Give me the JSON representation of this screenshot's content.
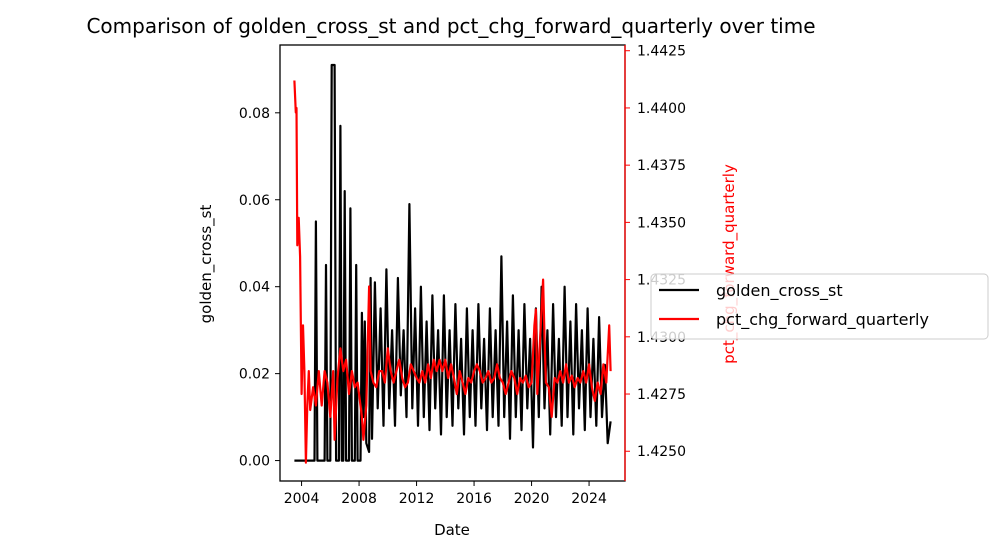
{
  "chart_data": {
    "type": "line",
    "title": "Comparison of golden_cross_st and pct_chg_forward_quarterly over time",
    "xlabel": "Date",
    "ylabel_left": "golden_cross_st",
    "ylabel_right": "pct_chg_forward_quarterly",
    "xlim": [
      2002.5,
      2026.5
    ],
    "ylim_left": [
      -0.0047,
      0.0956
    ],
    "ylim_right": [
      1.4237,
      1.44275
    ],
    "x_ticks": [
      2004,
      2008,
      2012,
      2016,
      2020,
      2024
    ],
    "y_left_ticks": [
      0.0,
      0.02,
      0.04,
      0.06,
      0.08
    ],
    "y_left_tick_labels": [
      "0.00",
      "0.02",
      "0.04",
      "0.06",
      "0.08"
    ],
    "y_right_ticks": [
      1.425,
      1.4275,
      1.43,
      1.4325,
      1.435,
      1.4375,
      1.44,
      1.4425
    ],
    "y_right_tick_labels": [
      "1.4250",
      "1.4275",
      "1.4300",
      "1.4325",
      "1.4350",
      "1.4375",
      "1.4400",
      "1.4425"
    ],
    "grid": false,
    "legend_position": "right, outside plot",
    "colors": {
      "left_series": "#000000",
      "right_series": "#ff0000",
      "right_axis": "#ff0000"
    },
    "series": [
      {
        "name": "golden_cross_st",
        "axis": "left",
        "color": "#000000",
        "points": [
          [
            2003.5,
            0.0
          ],
          [
            2004.0,
            0.0
          ],
          [
            2004.5,
            0.0
          ],
          [
            2004.9,
            0.0
          ],
          [
            2005.0,
            0.055
          ],
          [
            2005.1,
            0.0
          ],
          [
            2005.6,
            0.0
          ],
          [
            2005.7,
            0.045
          ],
          [
            2005.8,
            0.0
          ],
          [
            2006.0,
            0.0
          ],
          [
            2006.1,
            0.091
          ],
          [
            2006.3,
            0.091
          ],
          [
            2006.4,
            0.0
          ],
          [
            2006.6,
            0.0
          ],
          [
            2006.7,
            0.077
          ],
          [
            2006.8,
            0.0
          ],
          [
            2006.9,
            0.0
          ],
          [
            2007.0,
            0.062
          ],
          [
            2007.1,
            0.0
          ],
          [
            2007.3,
            0.0
          ],
          [
            2007.4,
            0.058
          ],
          [
            2007.5,
            0.0
          ],
          [
            2007.7,
            0.0
          ],
          [
            2007.8,
            0.045
          ],
          [
            2007.9,
            0.0
          ],
          [
            2008.1,
            0.0
          ],
          [
            2008.2,
            0.034
          ],
          [
            2008.3,
            0.01
          ],
          [
            2008.4,
            0.032
          ],
          [
            2008.5,
            0.004
          ],
          [
            2008.7,
            0.002
          ],
          [
            2008.8,
            0.042
          ],
          [
            2008.9,
            0.005
          ],
          [
            2009.1,
            0.041
          ],
          [
            2009.3,
            0.012
          ],
          [
            2009.5,
            0.035
          ],
          [
            2009.7,
            0.008
          ],
          [
            2009.9,
            0.044
          ],
          [
            2010.1,
            0.012
          ],
          [
            2010.3,
            0.03
          ],
          [
            2010.5,
            0.008
          ],
          [
            2010.7,
            0.042
          ],
          [
            2010.9,
            0.015
          ],
          [
            2011.1,
            0.03
          ],
          [
            2011.3,
            0.01
          ],
          [
            2011.5,
            0.059
          ],
          [
            2011.7,
            0.012
          ],
          [
            2011.9,
            0.035
          ],
          [
            2012.1,
            0.008
          ],
          [
            2012.3,
            0.04
          ],
          [
            2012.5,
            0.01
          ],
          [
            2012.7,
            0.032
          ],
          [
            2012.9,
            0.007
          ],
          [
            2013.1,
            0.038
          ],
          [
            2013.3,
            0.012
          ],
          [
            2013.5,
            0.03
          ],
          [
            2013.7,
            0.006
          ],
          [
            2013.9,
            0.038
          ],
          [
            2014.1,
            0.01
          ],
          [
            2014.3,
            0.03
          ],
          [
            2014.5,
            0.008
          ],
          [
            2014.7,
            0.036
          ],
          [
            2014.9,
            0.012
          ],
          [
            2015.1,
            0.028
          ],
          [
            2015.3,
            0.006
          ],
          [
            2015.5,
            0.035
          ],
          [
            2015.7,
            0.01
          ],
          [
            2015.9,
            0.03
          ],
          [
            2016.1,
            0.008
          ],
          [
            2016.3,
            0.036
          ],
          [
            2016.5,
            0.012
          ],
          [
            2016.7,
            0.028
          ],
          [
            2016.9,
            0.007
          ],
          [
            2017.1,
            0.035
          ],
          [
            2017.3,
            0.01
          ],
          [
            2017.5,
            0.03
          ],
          [
            2017.7,
            0.008
          ],
          [
            2017.9,
            0.047
          ],
          [
            2018.1,
            0.01
          ],
          [
            2018.3,
            0.032
          ],
          [
            2018.5,
            0.005
          ],
          [
            2018.7,
            0.038
          ],
          [
            2018.9,
            0.01
          ],
          [
            2019.1,
            0.03
          ],
          [
            2019.3,
            0.007
          ],
          [
            2019.5,
            0.036
          ],
          [
            2019.7,
            0.012
          ],
          [
            2019.9,
            0.028
          ],
          [
            2020.1,
            0.003
          ],
          [
            2020.3,
            0.035
          ],
          [
            2020.5,
            0.01
          ],
          [
            2020.7,
            0.04
          ],
          [
            2020.9,
            0.012
          ],
          [
            2021.1,
            0.03
          ],
          [
            2021.3,
            0.006
          ],
          [
            2021.5,
            0.036
          ],
          [
            2021.7,
            0.01
          ],
          [
            2021.9,
            0.028
          ],
          [
            2022.1,
            0.008
          ],
          [
            2022.3,
            0.04
          ],
          [
            2022.5,
            0.01
          ],
          [
            2022.7,
            0.032
          ],
          [
            2022.9,
            0.006
          ],
          [
            2023.1,
            0.036
          ],
          [
            2023.3,
            0.012
          ],
          [
            2023.5,
            0.03
          ],
          [
            2023.7,
            0.007
          ],
          [
            2023.9,
            0.035
          ],
          [
            2024.1,
            0.01
          ],
          [
            2024.3,
            0.028
          ],
          [
            2024.5,
            0.008
          ],
          [
            2024.7,
            0.033
          ],
          [
            2024.9,
            0.01
          ],
          [
            2025.1,
            0.022
          ],
          [
            2025.3,
            0.004
          ],
          [
            2025.5,
            0.009
          ]
        ]
      },
      {
        "name": "pct_chg_forward_quarterly",
        "axis": "right",
        "color": "#ff0000",
        "points": [
          [
            2003.5,
            1.4412
          ],
          [
            2003.6,
            1.4398
          ],
          [
            2003.65,
            1.44
          ],
          [
            2003.7,
            1.434
          ],
          [
            2003.8,
            1.4352
          ],
          [
            2003.9,
            1.4335
          ],
          [
            2004.0,
            1.4275
          ],
          [
            2004.1,
            1.4305
          ],
          [
            2004.2,
            1.4285
          ],
          [
            2004.3,
            1.4245
          ],
          [
            2004.4,
            1.427
          ],
          [
            2004.5,
            1.4285
          ],
          [
            2004.6,
            1.4268
          ],
          [
            2004.8,
            1.4278
          ],
          [
            2005.0,
            1.427
          ],
          [
            2005.2,
            1.4285
          ],
          [
            2005.4,
            1.427
          ],
          [
            2005.6,
            1.4285
          ],
          [
            2005.8,
            1.428
          ],
          [
            2006.0,
            1.4265
          ],
          [
            2006.2,
            1.4285
          ],
          [
            2006.3,
            1.4255
          ],
          [
            2006.5,
            1.4282
          ],
          [
            2006.7,
            1.4295
          ],
          [
            2006.9,
            1.4285
          ],
          [
            2007.1,
            1.429
          ],
          [
            2007.3,
            1.4275
          ],
          [
            2007.5,
            1.4285
          ],
          [
            2007.7,
            1.4278
          ],
          [
            2007.9,
            1.428
          ],
          [
            2008.1,
            1.427
          ],
          [
            2008.2,
            1.4265
          ],
          [
            2008.3,
            1.4255
          ],
          [
            2008.5,
            1.427
          ],
          [
            2008.7,
            1.4322
          ],
          [
            2008.8,
            1.4285
          ],
          [
            2009.0,
            1.428
          ],
          [
            2009.2,
            1.4278
          ],
          [
            2009.4,
            1.4285
          ],
          [
            2009.6,
            1.4285
          ],
          [
            2009.8,
            1.428
          ],
          [
            2010.0,
            1.4295
          ],
          [
            2010.2,
            1.4285
          ],
          [
            2010.4,
            1.428
          ],
          [
            2010.6,
            1.4285
          ],
          [
            2010.8,
            1.429
          ],
          [
            2011.0,
            1.4282
          ],
          [
            2011.2,
            1.4278
          ],
          [
            2011.4,
            1.428
          ],
          [
            2011.6,
            1.4288
          ],
          [
            2011.8,
            1.4285
          ],
          [
            2012.0,
            1.4282
          ],
          [
            2012.2,
            1.428
          ],
          [
            2012.4,
            1.4285
          ],
          [
            2012.6,
            1.428
          ],
          [
            2012.8,
            1.4288
          ],
          [
            2013.0,
            1.4282
          ],
          [
            2013.2,
            1.429
          ],
          [
            2013.4,
            1.4285
          ],
          [
            2013.6,
            1.429
          ],
          [
            2013.8,
            1.4285
          ],
          [
            2014.0,
            1.429
          ],
          [
            2014.2,
            1.4282
          ],
          [
            2014.4,
            1.4288
          ],
          [
            2014.6,
            1.4282
          ],
          [
            2014.8,
            1.4275
          ],
          [
            2015.0,
            1.4285
          ],
          [
            2015.2,
            1.428
          ],
          [
            2015.4,
            1.4275
          ],
          [
            2015.6,
            1.4282
          ],
          [
            2015.8,
            1.428
          ],
          [
            2016.0,
            1.4285
          ],
          [
            2016.2,
            1.4288
          ],
          [
            2016.4,
            1.4285
          ],
          [
            2016.6,
            1.428
          ],
          [
            2016.8,
            1.4282
          ],
          [
            2017.0,
            1.4285
          ],
          [
            2017.2,
            1.428
          ],
          [
            2017.4,
            1.4282
          ],
          [
            2017.6,
            1.4288
          ],
          [
            2017.8,
            1.4282
          ],
          [
            2018.0,
            1.428
          ],
          [
            2018.2,
            1.4275
          ],
          [
            2018.4,
            1.428
          ],
          [
            2018.6,
            1.4285
          ],
          [
            2018.8,
            1.4282
          ],
          [
            2019.0,
            1.4275
          ],
          [
            2019.2,
            1.4282
          ],
          [
            2019.4,
            1.428
          ],
          [
            2019.6,
            1.4283
          ],
          [
            2019.8,
            1.4278
          ],
          [
            2020.0,
            1.428
          ],
          [
            2020.2,
            1.4305
          ],
          [
            2020.3,
            1.4312
          ],
          [
            2020.4,
            1.4275
          ],
          [
            2020.6,
            1.43
          ],
          [
            2020.8,
            1.4325
          ],
          [
            2020.9,
            1.43
          ],
          [
            2021.0,
            1.428
          ],
          [
            2021.2,
            1.4278
          ],
          [
            2021.4,
            1.4265
          ],
          [
            2021.6,
            1.4282
          ],
          [
            2021.8,
            1.428
          ],
          [
            2022.0,
            1.4285
          ],
          [
            2022.2,
            1.428
          ],
          [
            2022.4,
            1.4288
          ],
          [
            2022.6,
            1.428
          ],
          [
            2022.8,
            1.4283
          ],
          [
            2023.0,
            1.4278
          ],
          [
            2023.2,
            1.4282
          ],
          [
            2023.4,
            1.428
          ],
          [
            2023.6,
            1.4285
          ],
          [
            2023.8,
            1.428
          ],
          [
            2024.0,
            1.4288
          ],
          [
            2024.2,
            1.4278
          ],
          [
            2024.4,
            1.4272
          ],
          [
            2024.6,
            1.428
          ],
          [
            2024.8,
            1.4275
          ],
          [
            2025.0,
            1.4288
          ],
          [
            2025.2,
            1.428
          ],
          [
            2025.4,
            1.4305
          ],
          [
            2025.5,
            1.4285
          ]
        ]
      }
    ]
  }
}
